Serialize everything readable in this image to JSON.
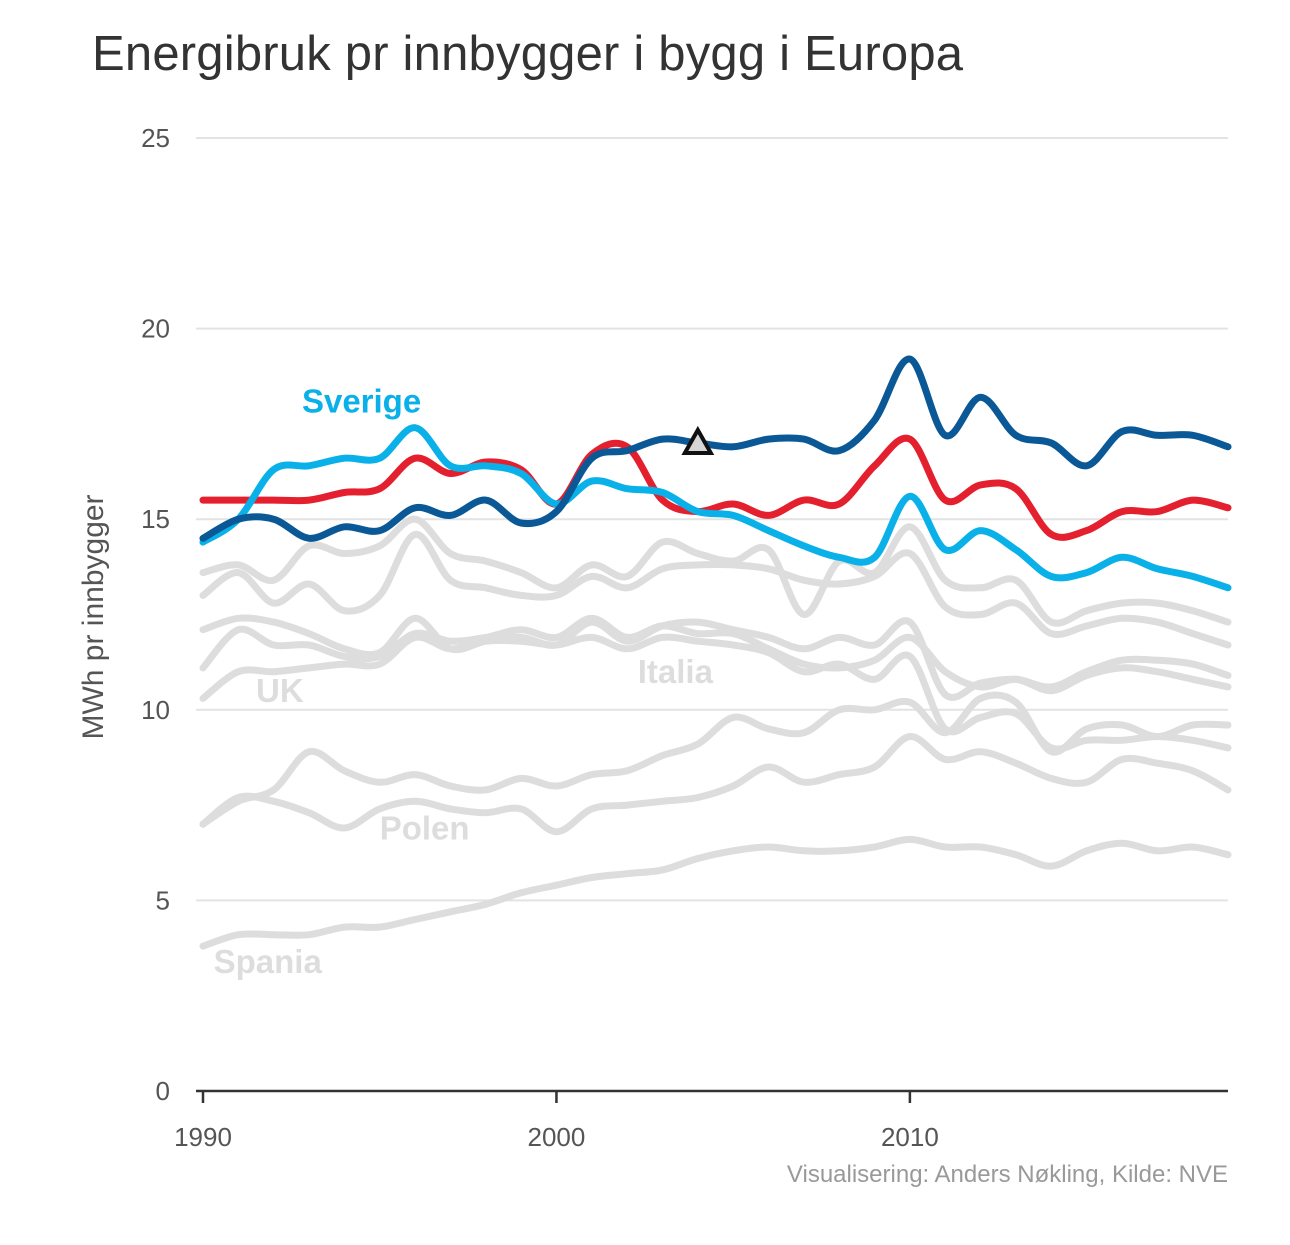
{
  "title": "Energibruk pr innbygger i bygg i Europa",
  "credit": "Visualisering: Anders Nøkling, Kilde: NVE",
  "chart_data": {
    "type": "line",
    "title": "Energibruk pr innbygger i bygg i Europa",
    "xlabel": "",
    "ylabel": "MWh pr innbygger",
    "xlim": [
      1990,
      2019
    ],
    "ylim": [
      0,
      25
    ],
    "xticks": [
      "1990",
      "2000",
      "2010"
    ],
    "yticks": [
      "0",
      "5",
      "10",
      "15",
      "20",
      "25"
    ],
    "grid": true,
    "x": [
      1990,
      1991,
      1992,
      1993,
      1994,
      1995,
      1996,
      1997,
      1998,
      1999,
      2000,
      2001,
      2002,
      2003,
      2004,
      2005,
      2006,
      2007,
      2008,
      2009,
      2010,
      2011,
      2012,
      2013,
      2014,
      2015,
      2016,
      2017,
      2018,
      2019
    ],
    "series": [
      {
        "name": "",
        "color": "#dddddd",
        "values": [
          13.6,
          13.8,
          13.4,
          14.3,
          14.1,
          14.3,
          15.0,
          14.1,
          13.9,
          13.6,
          13.2,
          13.8,
          13.5,
          14.4,
          14.1,
          13.9,
          14.2,
          12.5,
          13.9,
          13.6,
          14.8,
          13.4,
          13.2,
          13.4,
          12.3,
          12.6,
          12.8,
          12.8,
          12.6,
          12.3
        ]
      },
      {
        "name": "",
        "color": "#dddddd",
        "values": [
          13.0,
          13.6,
          12.8,
          13.3,
          12.6,
          13.0,
          14.6,
          13.4,
          13.2,
          13.0,
          13.0,
          13.5,
          13.2,
          13.7,
          13.8,
          13.8,
          13.7,
          13.4,
          13.3,
          13.5,
          14.1,
          12.7,
          12.5,
          12.8,
          12.0,
          12.2,
          12.4,
          12.3,
          12.0,
          11.7
        ]
      },
      {
        "name": "UK",
        "color": "#dddddd",
        "values": [
          12.1,
          12.4,
          12.3,
          12.0,
          11.6,
          11.5,
          12.4,
          11.6,
          11.8,
          11.9,
          11.7,
          12.3,
          11.8,
          12.2,
          12.3,
          12.1,
          11.9,
          11.6,
          11.9,
          11.7,
          12.3,
          10.4,
          10.7,
          10.8,
          10.6,
          11.0,
          11.3,
          11.3,
          11.2,
          10.9
        ]
      },
      {
        "name": "",
        "color": "#dddddd",
        "values": [
          11.1,
          12.1,
          11.7,
          11.7,
          11.4,
          11.4,
          12.0,
          11.8,
          11.9,
          12.1,
          11.9,
          12.4,
          11.9,
          12.2,
          12.0,
          12.0,
          11.6,
          11.2,
          11.1,
          11.3,
          11.9,
          11.0,
          10.6,
          10.8,
          10.5,
          10.9,
          11.1,
          11.0,
          10.8,
          10.6
        ]
      },
      {
        "name": "Italia",
        "color": "#dddddd",
        "values": [
          10.3,
          11.0,
          11.0,
          11.1,
          11.2,
          11.2,
          11.9,
          11.6,
          11.8,
          11.8,
          11.7,
          11.9,
          11.6,
          11.9,
          11.8,
          11.7,
          11.5,
          11.0,
          11.2,
          10.8,
          11.4,
          9.5,
          9.8,
          9.9,
          9.0,
          9.2,
          9.2,
          9.3,
          9.2,
          9.0
        ]
      },
      {
        "name": "",
        "color": "#dddddd",
        "values": [
          7.0,
          7.6,
          7.9,
          8.9,
          8.4,
          8.1,
          8.3,
          8.0,
          7.9,
          8.2,
          8.0,
          8.3,
          8.4,
          8.8,
          9.1,
          9.8,
          9.5,
          9.4,
          10.0,
          10.0,
          10.2,
          9.4,
          10.3,
          10.2,
          8.9,
          9.5,
          9.6,
          9.3,
          9.6,
          9.6
        ]
      },
      {
        "name": "Polen",
        "color": "#dddddd",
        "values": [
          7.0,
          7.7,
          7.6,
          7.3,
          6.9,
          7.4,
          7.6,
          7.4,
          7.3,
          7.4,
          6.8,
          7.4,
          7.5,
          7.6,
          7.7,
          8.0,
          8.5,
          8.1,
          8.3,
          8.5,
          9.3,
          8.7,
          8.9,
          8.6,
          8.2,
          8.1,
          8.7,
          8.6,
          8.4,
          7.9
        ]
      },
      {
        "name": "Spania",
        "color": "#dddddd",
        "values": [
          3.8,
          4.1,
          4.1,
          4.1,
          4.3,
          4.3,
          4.5,
          4.7,
          4.9,
          5.2,
          5.4,
          5.6,
          5.7,
          5.8,
          6.1,
          6.3,
          6.4,
          6.3,
          6.3,
          6.4,
          6.6,
          6.4,
          6.4,
          6.2,
          5.9,
          6.3,
          6.5,
          6.3,
          6.4,
          6.2
        ]
      },
      {
        "name": "",
        "color": "#e4202f",
        "values": [
          15.5,
          15.5,
          15.5,
          15.5,
          15.7,
          15.8,
          16.6,
          16.2,
          16.5,
          16.3,
          15.4,
          16.7,
          16.9,
          15.5,
          15.2,
          15.4,
          15.1,
          15.5,
          15.4,
          16.4,
          17.1,
          15.5,
          15.9,
          15.8,
          14.6,
          14.7,
          15.2,
          15.2,
          15.5,
          15.3
        ]
      },
      {
        "name": "Sverige",
        "color": "#0ab0e8",
        "values": [
          14.4,
          15.0,
          16.3,
          16.4,
          16.6,
          16.6,
          17.4,
          16.4,
          16.4,
          16.2,
          15.4,
          16.0,
          15.8,
          15.7,
          15.2,
          15.1,
          14.7,
          14.3,
          14.0,
          14.0,
          15.6,
          14.2,
          14.7,
          14.2,
          13.5,
          13.6,
          14.0,
          13.7,
          13.5,
          13.2
        ]
      },
      {
        "name": "",
        "color": "#0a5896",
        "values": [
          14.5,
          15.0,
          15.0,
          14.5,
          14.8,
          14.7,
          15.3,
          15.1,
          15.5,
          14.9,
          15.2,
          16.6,
          16.8,
          17.1,
          17.0,
          16.9,
          17.1,
          17.1,
          16.8,
          17.6,
          19.2,
          17.2,
          18.2,
          17.2,
          17.0,
          16.4,
          17.3,
          17.2,
          17.2,
          16.9
        ]
      }
    ],
    "marker": {
      "shape": "triangle",
      "x": 2004,
      "y": 17.0
    },
    "annotations": [
      {
        "text": "Sverige",
        "x": 1992.8,
        "y": 17.8,
        "color": "#0ab0e8"
      },
      {
        "text": "UK",
        "x": 1991.5,
        "y": 10.2,
        "color": "#dddddd"
      },
      {
        "text": "Italia",
        "x": 2002.3,
        "y": 10.7,
        "color": "#dddddd"
      },
      {
        "text": "Polen",
        "x": 1995.0,
        "y": 6.6,
        "color": "#dddddd"
      },
      {
        "text": "Spania",
        "x": 1990.3,
        "y": 3.1,
        "color": "#dddddd"
      }
    ]
  }
}
